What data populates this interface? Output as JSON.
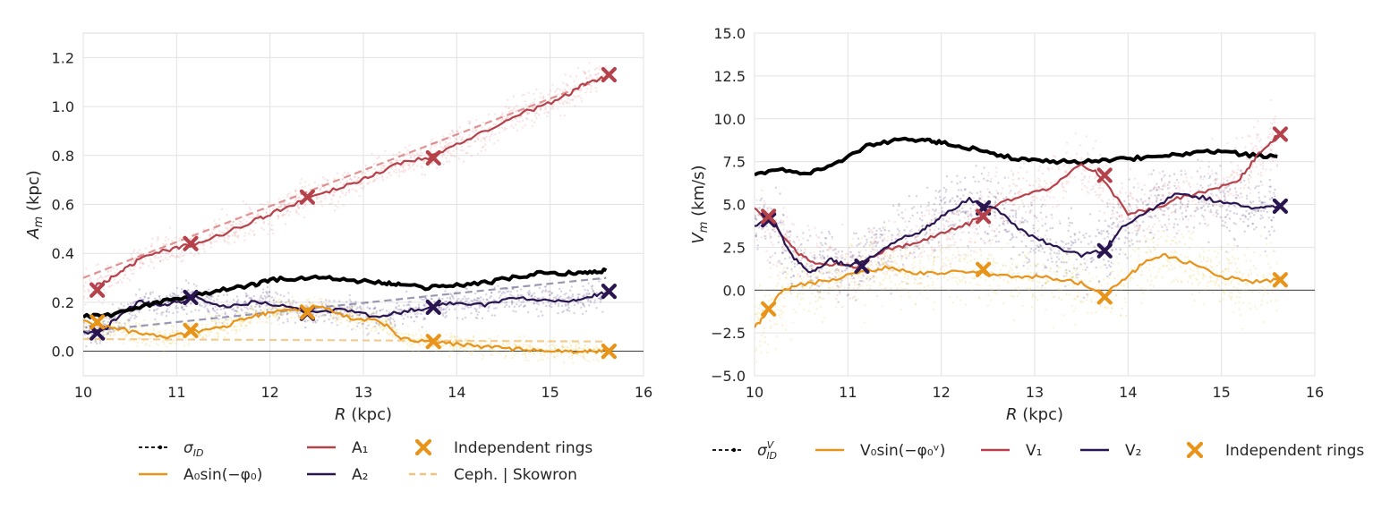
{
  "chart_data": [
    {
      "type": "line",
      "panel": "left",
      "xlabel_math": "R",
      "xlabel_unit": "(kpc)",
      "ylabel_math": "A",
      "ylabel_sub": "m",
      "ylabel_unit": "(kpc)",
      "xlim": [
        10,
        16
      ],
      "ylim": [
        -0.1,
        1.3
      ],
      "xticks": [
        "10",
        "11",
        "12",
        "13",
        "14",
        "15",
        "16"
      ],
      "yticks": [
        "0.0",
        "0.2",
        "0.4",
        "0.6",
        "0.8",
        "1.0",
        "1.2"
      ],
      "grid": true,
      "series": [
        {
          "name": "A1",
          "color": "#b5424b",
          "x": [
            10.1,
            10.3,
            10.5,
            10.7,
            11.0,
            11.2,
            11.5,
            11.8,
            12.0,
            12.3,
            12.6,
            12.9,
            13.1,
            13.4,
            13.7,
            14.0,
            14.3,
            14.6,
            14.9,
            15.2,
            15.4,
            15.6
          ],
          "y": [
            0.26,
            0.3,
            0.35,
            0.4,
            0.42,
            0.44,
            0.48,
            0.53,
            0.56,
            0.61,
            0.65,
            0.69,
            0.72,
            0.77,
            0.79,
            0.85,
            0.9,
            0.96,
            1.0,
            1.05,
            1.1,
            1.12
          ]
        },
        {
          "name": "A2",
          "color": "#2a1550",
          "x": [
            10.0,
            10.2,
            10.4,
            10.6,
            10.8,
            11.0,
            11.2,
            11.5,
            11.8,
            12.1,
            12.4,
            12.8,
            13.1,
            13.4,
            13.7,
            14.0,
            14.3,
            14.6,
            14.9,
            15.2,
            15.4,
            15.6
          ],
          "y": [
            0.08,
            0.08,
            0.15,
            0.2,
            0.19,
            0.2,
            0.22,
            0.18,
            0.2,
            0.19,
            0.16,
            0.17,
            0.14,
            0.16,
            0.18,
            0.2,
            0.19,
            0.22,
            0.21,
            0.21,
            0.22,
            0.24
          ]
        },
        {
          "name": "A0 sin(-phi0)",
          "color": "#e8931a",
          "x": [
            10.0,
            10.3,
            10.6,
            10.9,
            11.2,
            11.5,
            11.8,
            12.0,
            12.3,
            12.6,
            12.9,
            13.2,
            13.4,
            13.7,
            14.0,
            14.3,
            14.6,
            14.9,
            15.2,
            15.4,
            15.6
          ],
          "y": [
            0.12,
            0.1,
            0.07,
            0.06,
            0.08,
            0.1,
            0.14,
            0.16,
            0.17,
            0.18,
            0.13,
            0.12,
            0.05,
            0.04,
            0.03,
            0.02,
            0.01,
            0.0,
            0.0,
            0.0,
            0.0
          ]
        },
        {
          "name": "sigma_ID",
          "color": "#000000",
          "x": [
            10.0,
            10.3,
            10.6,
            10.9,
            11.2,
            11.5,
            11.8,
            12.0,
            12.3,
            12.6,
            12.9,
            13.2,
            13.4,
            13.7,
            14.0,
            14.3,
            14.6,
            14.9,
            15.2,
            15.4,
            15.6
          ],
          "y": [
            0.14,
            0.15,
            0.18,
            0.21,
            0.23,
            0.25,
            0.27,
            0.29,
            0.3,
            0.3,
            0.29,
            0.28,
            0.27,
            0.26,
            0.27,
            0.28,
            0.3,
            0.32,
            0.32,
            0.32,
            0.33
          ]
        },
        {
          "name": "A1 trend",
          "color": "#d98080",
          "dashed": true,
          "x": [
            10.0,
            15.6
          ],
          "y": [
            0.3,
            1.12
          ]
        },
        {
          "name": "A2 trend",
          "color": "#8a86a4",
          "dashed": true,
          "x": [
            10.0,
            15.6
          ],
          "y": [
            0.08,
            0.3
          ]
        },
        {
          "name": "Ceph. | Skowron",
          "color": "#f2c27c",
          "dashed": true,
          "x": [
            10.0,
            15.6
          ],
          "y": [
            0.05,
            0.04
          ]
        }
      ],
      "rings": [
        {
          "x": 10.15,
          "y": 0.25,
          "color": "#b5424b"
        },
        {
          "x": 11.15,
          "y": 0.44,
          "color": "#b5424b"
        },
        {
          "x": 12.4,
          "y": 0.63,
          "color": "#b5424b"
        },
        {
          "x": 13.75,
          "y": 0.79,
          "color": "#b5424b"
        },
        {
          "x": 15.63,
          "y": 1.13,
          "color": "#b5424b"
        },
        {
          "x": 10.15,
          "y": 0.075,
          "color": "#2a1550"
        },
        {
          "x": 11.15,
          "y": 0.22,
          "color": "#2a1550"
        },
        {
          "x": 12.4,
          "y": 0.155,
          "color": "#2a1550"
        },
        {
          "x": 13.75,
          "y": 0.18,
          "color": "#2a1550"
        },
        {
          "x": 15.63,
          "y": 0.245,
          "color": "#2a1550"
        },
        {
          "x": 10.15,
          "y": 0.12,
          "color": "#e8931a"
        },
        {
          "x": 11.15,
          "y": 0.085,
          "color": "#e8931a"
        },
        {
          "x": 12.4,
          "y": 0.16,
          "color": "#e8931a"
        },
        {
          "x": 13.75,
          "y": 0.04,
          "color": "#e8931a"
        },
        {
          "x": 15.63,
          "y": 0.0,
          "color": "#e8931a"
        }
      ],
      "legend": {
        "placement": "below",
        "items": [
          {
            "kind": "sigma",
            "base": "σ",
            "sub": "ID",
            "sup": "",
            "color": "#000000"
          },
          {
            "kind": "line",
            "label": "A₀sin(−φ₀)",
            "color": "#e8931a"
          },
          {
            "kind": "line",
            "label": "A₁",
            "color": "#b5424b"
          },
          {
            "kind": "line",
            "label": "A₂",
            "color": "#2a1550"
          },
          {
            "kind": "x",
            "label": "Independent rings",
            "color": "#e8931a"
          },
          {
            "kind": "dash",
            "label": "Ceph. | Skowron",
            "color": "#f2c27c"
          }
        ]
      }
    },
    {
      "type": "line",
      "panel": "right",
      "xlabel_math": "R",
      "xlabel_unit": "(kpc)",
      "ylabel_math": "V",
      "ylabel_sub": "m",
      "ylabel_unit": "(km/s)",
      "xlim": [
        10,
        16
      ],
      "ylim": [
        -5,
        15
      ],
      "xticks": [
        "10",
        "11",
        "12",
        "13",
        "14",
        "15",
        "16"
      ],
      "yticks": [
        "−5.0",
        "−2.5",
        "0.0",
        "2.5",
        "5.0",
        "7.5",
        "10.0",
        "12.5",
        "15.0"
      ],
      "grid": true,
      "series": [
        {
          "name": "sigma_ID^V",
          "color": "#000000",
          "x": [
            10.0,
            10.3,
            10.6,
            10.9,
            11.2,
            11.5,
            11.8,
            12.0,
            12.3,
            12.6,
            12.9,
            13.2,
            13.5,
            13.8,
            14.1,
            14.4,
            14.7,
            15.0,
            15.3,
            15.6
          ],
          "y": [
            6.8,
            7.0,
            6.8,
            7.5,
            8.4,
            8.7,
            8.8,
            8.6,
            8.3,
            7.9,
            7.6,
            7.5,
            7.5,
            7.6,
            7.7,
            7.8,
            8.0,
            8.1,
            7.9,
            7.8
          ]
        },
        {
          "name": "V1",
          "color": "#b5424b",
          "x": [
            10.0,
            10.2,
            10.4,
            10.6,
            10.8,
            11.1,
            11.4,
            11.7,
            12.0,
            12.3,
            12.6,
            12.9,
            13.2,
            13.5,
            13.7,
            14.0,
            14.3,
            14.6,
            14.9,
            15.2,
            15.4,
            15.6
          ],
          "y": [
            4.8,
            3.8,
            2.5,
            1.6,
            1.5,
            1.4,
            2.3,
            2.7,
            3.3,
            3.9,
            5.0,
            5.6,
            6.0,
            7.4,
            6.7,
            4.5,
            4.8,
            5.5,
            5.8,
            6.5,
            8.0,
            9.0
          ]
        },
        {
          "name": "V2",
          "color": "#2a1550",
          "x": [
            10.0,
            10.2,
            10.4,
            10.6,
            10.8,
            11.0,
            11.2,
            11.5,
            11.8,
            12.0,
            12.3,
            12.6,
            12.9,
            13.2,
            13.5,
            13.75,
            13.9,
            14.2,
            14.5,
            14.8,
            15.1,
            15.4,
            15.6
          ],
          "y": [
            3.8,
            4.1,
            2.0,
            1.0,
            1.8,
            1.4,
            1.8,
            2.8,
            3.5,
            4.3,
            5.3,
            4.7,
            3.3,
            2.6,
            2.0,
            2.3,
            3.5,
            4.5,
            5.6,
            5.4,
            5.0,
            4.8,
            4.9
          ]
        },
        {
          "name": "V0 sin(-phi0^V)",
          "color": "#e8931a",
          "x": [
            10.0,
            10.15,
            10.3,
            10.5,
            10.8,
            11.1,
            11.4,
            11.7,
            12.0,
            12.3,
            12.6,
            12.9,
            13.2,
            13.5,
            13.75,
            14.0,
            14.2,
            14.4,
            14.7,
            15.0,
            15.3,
            15.6
          ],
          "y": [
            -2.2,
            -1.2,
            0.0,
            0.3,
            0.6,
            1.0,
            1.3,
            1.0,
            1.0,
            1.1,
            0.9,
            0.8,
            0.7,
            0.4,
            -0.3,
            0.8,
            1.8,
            2.0,
            1.5,
            0.8,
            0.5,
            0.6
          ]
        }
      ],
      "rings": [
        {
          "x": 10.15,
          "y": 4.1,
          "color": "#2a1550"
        },
        {
          "x": 11.15,
          "y": 1.4,
          "color": "#2a1550"
        },
        {
          "x": 12.45,
          "y": 4.8,
          "color": "#2a1550"
        },
        {
          "x": 13.75,
          "y": 2.3,
          "color": "#2a1550"
        },
        {
          "x": 15.63,
          "y": 4.9,
          "color": "#2a1550"
        },
        {
          "x": 10.15,
          "y": 4.3,
          "color": "#b5424b"
        },
        {
          "x": 12.45,
          "y": 4.3,
          "color": "#b5424b"
        },
        {
          "x": 13.75,
          "y": 6.7,
          "color": "#b5424b"
        },
        {
          "x": 15.63,
          "y": 9.1,
          "color": "#b5424b"
        },
        {
          "x": 10.15,
          "y": -1.1,
          "color": "#e8931a"
        },
        {
          "x": 12.45,
          "y": 1.2,
          "color": "#e8931a"
        },
        {
          "x": 13.75,
          "y": -0.4,
          "color": "#e8931a"
        },
        {
          "x": 15.63,
          "y": 0.6,
          "color": "#e8931a"
        }
      ],
      "legend": {
        "placement": "below",
        "items": [
          {
            "kind": "sigma",
            "base": "σ",
            "sub": "ID",
            "sup": "V",
            "color": "#000000"
          },
          {
            "kind": "line",
            "label": "V₀sin(−φ₀ᵛ)",
            "color": "#e8931a"
          },
          {
            "kind": "line",
            "label": "V₁",
            "color": "#b5424b"
          },
          {
            "kind": "line",
            "label": "V₂",
            "color": "#2a1550"
          },
          {
            "kind": "x",
            "label": "Independent rings",
            "color": "#e8931a"
          }
        ]
      }
    }
  ]
}
